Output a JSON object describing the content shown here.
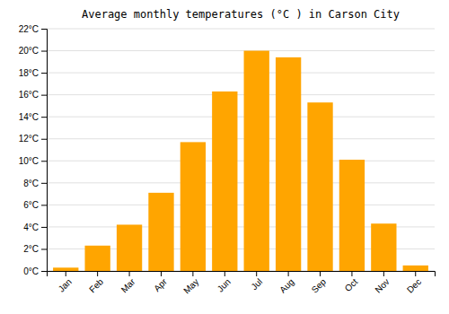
{
  "chart_data": {
    "type": "bar",
    "title": "Average monthly temperatures (°C ) in Carson City",
    "categories": [
      "Jan",
      "Feb",
      "Mar",
      "Apr",
      "May",
      "Jun",
      "Jul",
      "Aug",
      "Sep",
      "Oct",
      "Nov",
      "Dec"
    ],
    "values": [
      0.3,
      2.3,
      4.2,
      7.1,
      11.7,
      16.3,
      20.0,
      19.4,
      15.3,
      10.1,
      4.3,
      0.5
    ],
    "color": "#FFA500",
    "ylim": [
      0,
      22
    ],
    "yticks": [
      {
        "value": 0,
        "label": "0°C"
      },
      {
        "value": 2,
        "label": "2°C"
      },
      {
        "value": 4,
        "label": "4°C"
      },
      {
        "value": 6,
        "label": "6°C"
      },
      {
        "value": 8,
        "label": "8°C"
      },
      {
        "value": 10,
        "label": "10°C"
      },
      {
        "value": 12,
        "label": "12°C"
      },
      {
        "value": 14,
        "label": "14°C"
      },
      {
        "value": 16,
        "label": "16°C"
      },
      {
        "value": 18,
        "label": "18°C"
      },
      {
        "value": 20,
        "label": "20°C"
      },
      {
        "value": 22,
        "label": "22°C"
      }
    ],
    "grid": true
  }
}
